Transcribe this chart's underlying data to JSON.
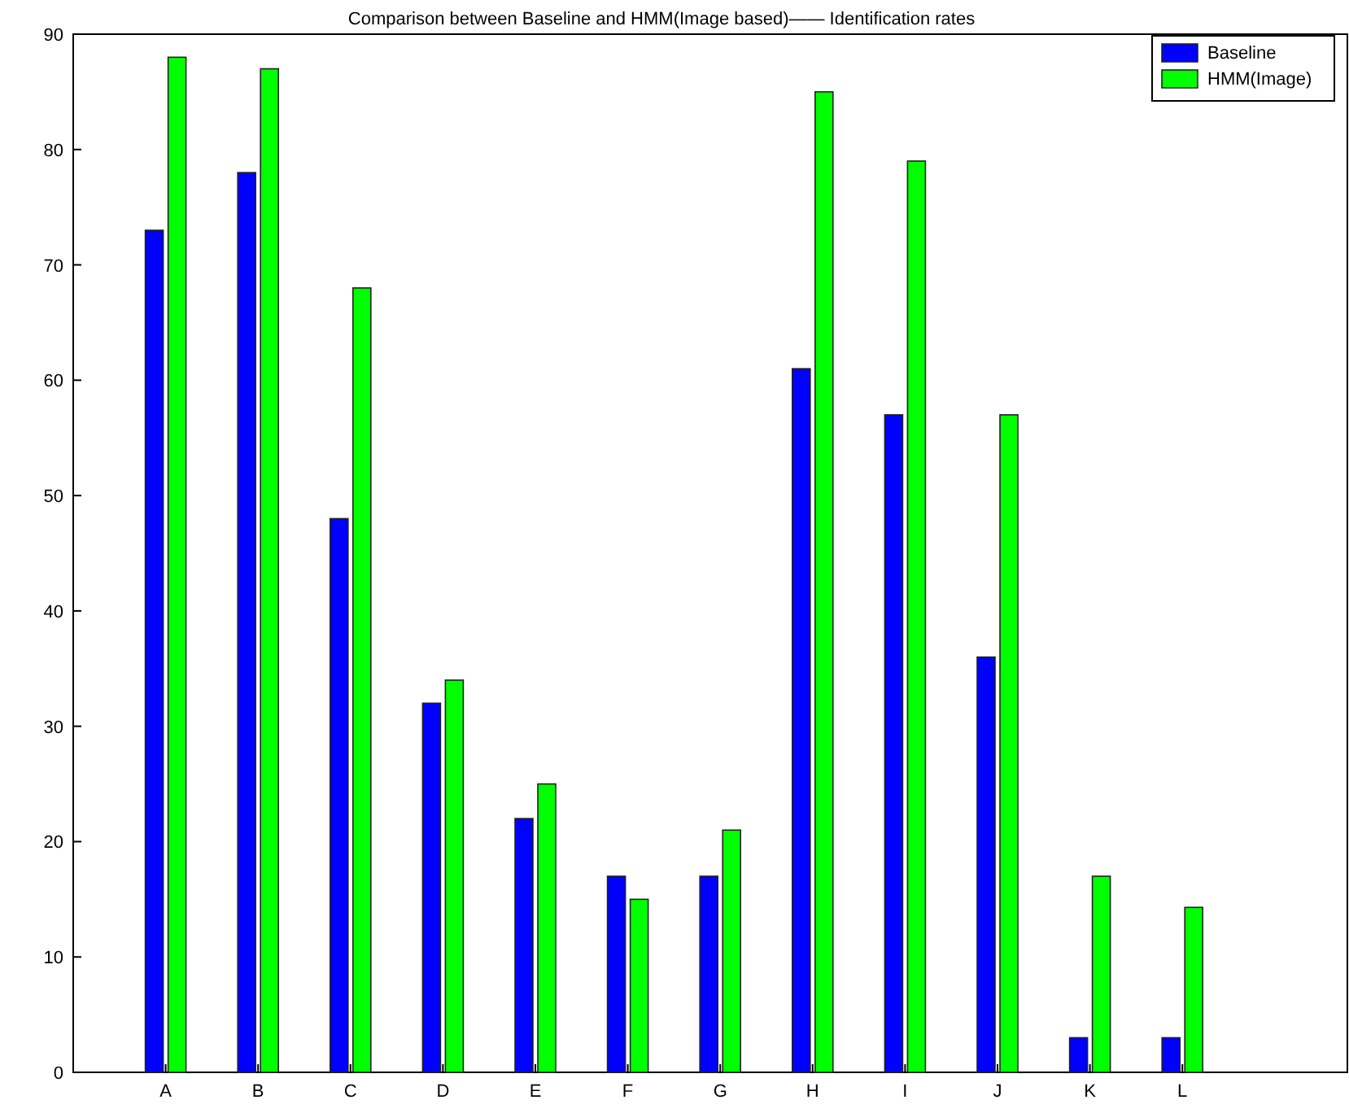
{
  "chart_data": {
    "type": "bar",
    "title": "Comparison between Baseline and HMM(Image based)—— Identification rates",
    "categories": [
      "A",
      "B",
      "C",
      "D",
      "E",
      "F",
      "G",
      "H",
      "I",
      "J",
      "K",
      "L"
    ],
    "series": [
      {
        "name": "Baseline",
        "color": "#0000ff",
        "values": [
          73,
          78,
          48,
          32,
          22,
          17,
          17,
          61,
          57,
          36,
          3,
          3
        ]
      },
      {
        "name": "HMM(Image)",
        "color": "#00ff00",
        "values": [
          88,
          87,
          68,
          34,
          25,
          15,
          21,
          85,
          79,
          57,
          17,
          14.3
        ]
      }
    ],
    "ylim": [
      0,
      90
    ],
    "yticks": [
      0,
      10,
      20,
      30,
      40,
      50,
      60,
      70,
      80,
      90
    ],
    "grid": false,
    "legend": "top right"
  }
}
